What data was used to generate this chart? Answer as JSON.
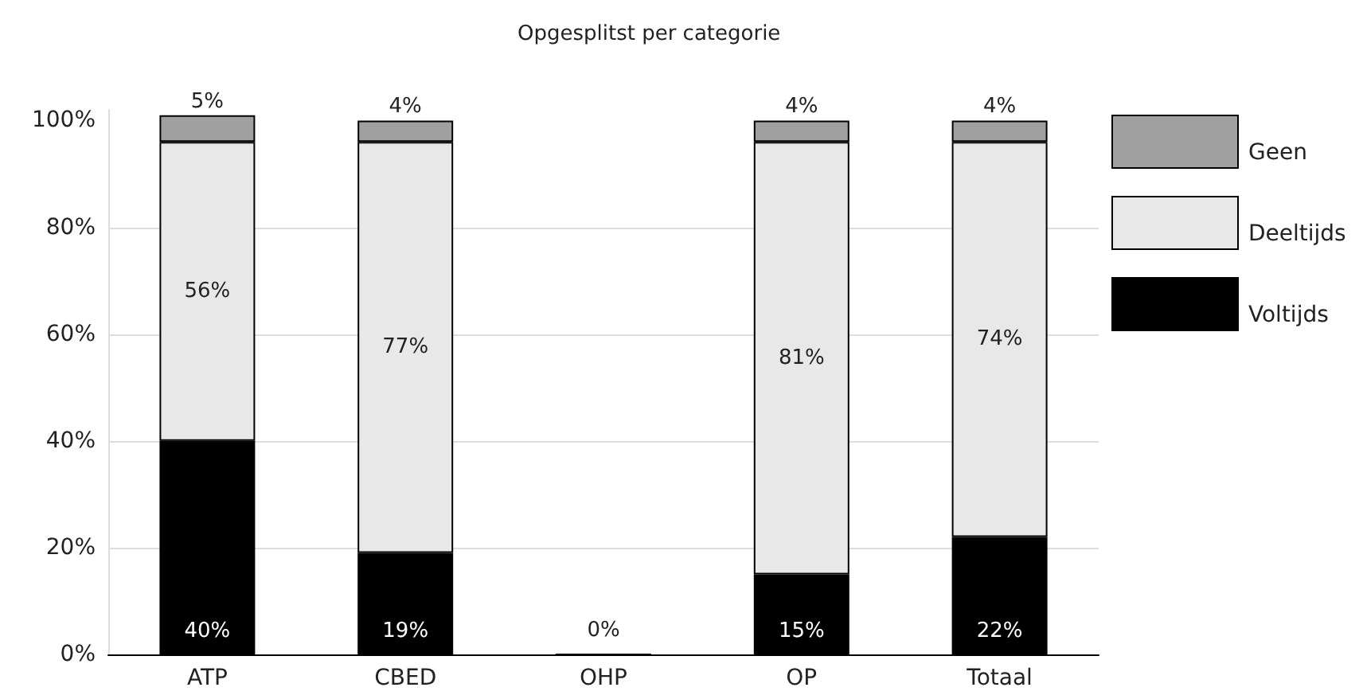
{
  "chart_data": {
    "type": "bar",
    "title": "Opgesplitst per categorie",
    "categories": [
      "ATP",
      "CBED",
      "OHP",
      "OP",
      "Totaal"
    ],
    "stacked": true,
    "series": [
      {
        "name": "Voltijds",
        "color": "#000000",
        "values": [
          40,
          19,
          0,
          15,
          22
        ],
        "value_labels": [
          "40%",
          "19%",
          "0%",
          "15%",
          "22%"
        ]
      },
      {
        "name": "Deeltijds",
        "color": "#e8e8e8",
        "values": [
          56,
          77,
          null,
          81,
          74
        ],
        "value_labels": [
          "56%",
          "77%",
          null,
          "81%",
          "74%"
        ]
      },
      {
        "name": "Geen",
        "color": "#a0a0a0",
        "values": [
          5,
          4,
          null,
          4,
          4
        ],
        "value_labels": [
          "5%",
          "4%",
          null,
          "4%",
          "4%"
        ]
      }
    ],
    "ylim": [
      0,
      102
    ],
    "yticks": [
      {
        "value": 0,
        "label": "0%"
      },
      {
        "value": 20,
        "label": "20%"
      },
      {
        "value": 40,
        "label": "40%"
      },
      {
        "value": 60,
        "label": "60%"
      },
      {
        "value": 80,
        "label": "80%"
      },
      {
        "value": 100,
        "label": "100%"
      }
    ],
    "grid": "y",
    "legend": "right"
  }
}
